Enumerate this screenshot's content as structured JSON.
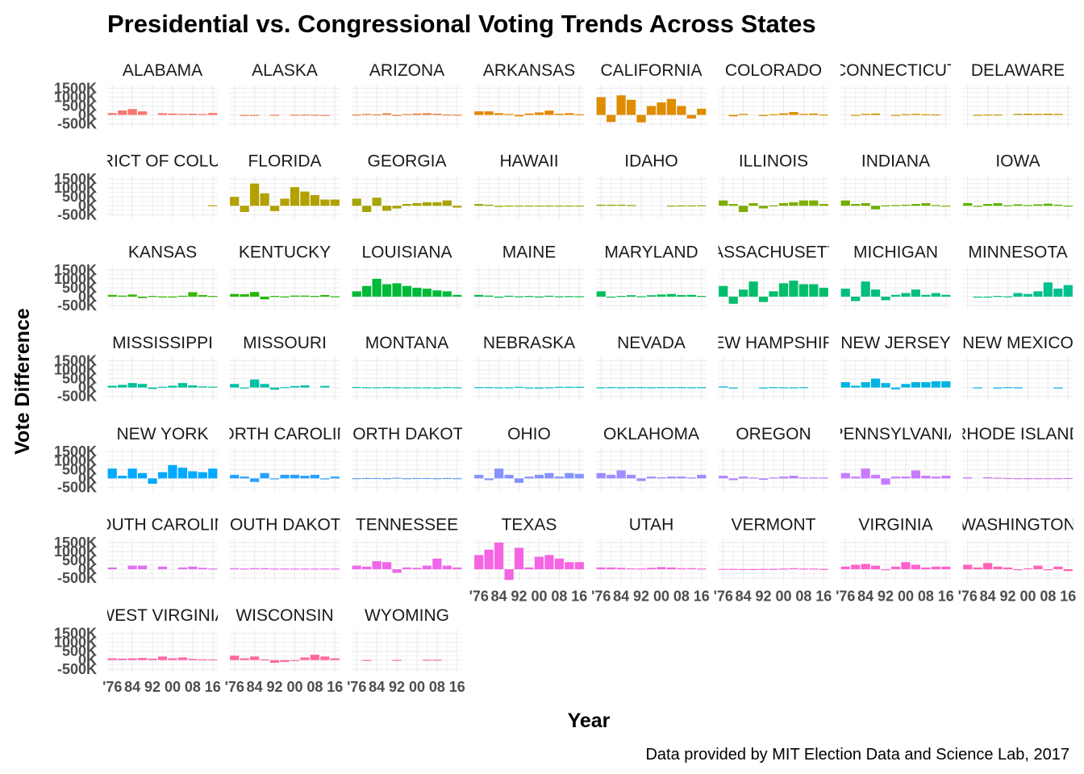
{
  "chart_data": {
    "type": "bar",
    "title": "Presidential vs. Congressional Voting Trends Across States",
    "xlabel": "Year",
    "ylabel": "Vote Difference",
    "caption": "Data provided by MIT Election Data and Science Lab, 2017",
    "y_ticks": [
      "1500K",
      "1000K",
      "500K",
      "0K",
      "-500K"
    ],
    "y_tick_values": [
      1500,
      1000,
      500,
      0,
      -500
    ],
    "x_ticks": [
      "'76",
      "84",
      "92",
      "00",
      "08",
      "16"
    ],
    "x_tick_values": [
      1976,
      1984,
      1992,
      2000,
      2008,
      2016
    ],
    "years": [
      1976,
      1980,
      1984,
      1988,
      1992,
      1996,
      2000,
      2004,
      2008,
      2012,
      2016
    ],
    "ylim": [
      -700,
      1700
    ],
    "value_unit": "thousands of votes",
    "grid": true,
    "legend": "none",
    "panels": [
      {
        "name": "ALABAMA",
        "color": "#F8766D",
        "values": [
          100,
          250,
          330,
          200,
          null,
          100,
          80,
          60,
          70,
          50,
          110
        ]
      },
      {
        "name": "ALASKA",
        "color": "#F37B59",
        "values": [
          null,
          -5,
          -10,
          null,
          10,
          null,
          10,
          20,
          10,
          -15,
          null
        ]
      },
      {
        "name": "ARIZONA",
        "color": "#ED8141",
        "values": [
          20,
          60,
          30,
          90,
          -60,
          50,
          80,
          100,
          70,
          20,
          10
        ]
      },
      {
        "name": "ARKANSAS",
        "color": "#E58700",
        "values": [
          200,
          200,
          100,
          50,
          -80,
          80,
          140,
          240,
          70,
          100,
          40
        ]
      },
      {
        "name": "CALIFORNIA",
        "color": "#DE8C00",
        "values": [
          1000,
          -400,
          1100,
          850,
          -420,
          500,
          700,
          900,
          500,
          -200,
          350
        ]
      },
      {
        "name": "COLORADO",
        "color": "#D89000",
        "values": [
          null,
          -80,
          60,
          null,
          -60,
          40,
          90,
          160,
          60,
          80,
          20
        ]
      },
      {
        "name": "CONNECTICUT",
        "color": "#CF9400",
        "values": [
          null,
          -40,
          60,
          80,
          null,
          -40,
          40,
          60,
          40,
          30,
          null
        ]
      },
      {
        "name": "DELAWARE",
        "color": "#C49A00",
        "values": [
          null,
          10,
          20,
          20,
          null,
          60,
          70,
          60,
          70,
          60,
          null
        ]
      },
      {
        "name": "DISTRICT OF COLUMBIA",
        "color": "#BB9D00",
        "values": [
          null,
          null,
          null,
          null,
          null,
          null,
          null,
          null,
          null,
          null,
          30
        ]
      },
      {
        "name": "FLORIDA",
        "color": "#B2A100",
        "values": [
          500,
          -350,
          1250,
          700,
          -300,
          400,
          1050,
          800,
          600,
          350,
          350
        ]
      },
      {
        "name": "GEORGIA",
        "color": "#A6A400",
        "values": [
          400,
          -350,
          450,
          -280,
          -150,
          100,
          150,
          200,
          200,
          300,
          -100
        ]
      },
      {
        "name": "HAWAII",
        "color": "#9AA800",
        "values": [
          100,
          60,
          -60,
          10,
          10,
          10,
          10,
          10,
          10,
          10,
          10
        ]
      },
      {
        "name": "IDAHO",
        "color": "#8EAB00",
        "values": [
          60,
          60,
          60,
          40,
          null,
          null,
          null,
          10,
          20,
          20,
          30
        ]
      },
      {
        "name": "ILLINOIS",
        "color": "#7FAE00",
        "values": [
          300,
          100,
          -350,
          150,
          -150,
          20,
          150,
          200,
          300,
          300,
          100
        ]
      },
      {
        "name": "INDIANA",
        "color": "#6FB000",
        "values": [
          300,
          100,
          150,
          -200,
          20,
          40,
          60,
          100,
          150,
          40,
          10
        ]
      },
      {
        "name": "IOWA",
        "color": "#5BB300",
        "values": [
          150,
          -50,
          100,
          150,
          30,
          80,
          40,
          80,
          120,
          60,
          10
        ]
      },
      {
        "name": "KANSAS",
        "color": "#39B600",
        "values": [
          100,
          60,
          120,
          -80,
          40,
          10,
          10,
          50,
          250,
          90,
          40
        ]
      },
      {
        "name": "KENTUCKY",
        "color": "#24B700",
        "values": [
          150,
          140,
          260,
          -150,
          40,
          10,
          60,
          60,
          40,
          90,
          20
        ]
      },
      {
        "name": "LOUISIANA",
        "color": "#00BA38",
        "values": [
          300,
          600,
          1000,
          700,
          750,
          600,
          500,
          450,
          350,
          300,
          100
        ]
      },
      {
        "name": "MAINE",
        "color": "#00BB4E",
        "values": [
          100,
          60,
          -60,
          50,
          20,
          40,
          10,
          50,
          20,
          30,
          20
        ]
      },
      {
        "name": "MARYLAND",
        "color": "#00BD5C",
        "values": [
          300,
          -50,
          40,
          80,
          20,
          80,
          120,
          150,
          90,
          100,
          40
        ]
      },
      {
        "name": "MASSACHUSETTS",
        "color": "#00BE6C",
        "values": [
          600,
          -400,
          400,
          850,
          -300,
          300,
          750,
          900,
          700,
          700,
          500
        ]
      },
      {
        "name": "MICHIGAN",
        "color": "#00BF7D",
        "values": [
          450,
          -250,
          850,
          400,
          -200,
          100,
          200,
          400,
          100,
          200,
          100
        ]
      },
      {
        "name": "MINNESOTA",
        "color": "#00C08D",
        "values": [
          null,
          -50,
          -30,
          40,
          20,
          200,
          150,
          300,
          800,
          450,
          650
        ]
      },
      {
        "name": "MISSISSIPPI",
        "color": "#00C19C",
        "values": [
          100,
          150,
          250,
          200,
          -80,
          40,
          100,
          250,
          120,
          60,
          50
        ]
      },
      {
        "name": "MISSOURI",
        "color": "#00C1AB",
        "values": [
          200,
          -50,
          450,
          200,
          -120,
          20,
          80,
          120,
          null,
          90,
          null
        ]
      },
      {
        "name": "MONTANA",
        "color": "#00BFB7",
        "values": [
          30,
          10,
          10,
          20,
          10,
          10,
          10,
          10,
          -20,
          20,
          10
        ]
      },
      {
        "name": "NEBRASKA",
        "color": "#00BDC2",
        "values": [
          20,
          20,
          10,
          10,
          40,
          -40,
          -60,
          10,
          40,
          40,
          40
        ]
      },
      {
        "name": "NEVADA",
        "color": "#00BBCE",
        "values": [
          10,
          20,
          10,
          20,
          20,
          10,
          20,
          20,
          20,
          10,
          20
        ]
      },
      {
        "name": "NEW HAMPSHIRE",
        "color": "#00B8DA",
        "values": [
          60,
          -30,
          null,
          null,
          -30,
          20,
          10,
          10,
          20,
          null,
          null
        ]
      },
      {
        "name": "NEW JERSEY",
        "color": "#00B4E4",
        "values": [
          300,
          100,
          300,
          500,
          250,
          -100,
          200,
          300,
          300,
          350,
          350
        ]
      },
      {
        "name": "NEW MEXICO",
        "color": "#00B0F6",
        "values": [
          null,
          10,
          null,
          -40,
          20,
          10,
          null,
          null,
          null,
          -40,
          null
        ]
      },
      {
        "name": "NEW YORK",
        "color": "#00A9FF",
        "values": [
          550,
          150,
          550,
          300,
          -300,
          350,
          750,
          600,
          400,
          350,
          550
        ]
      },
      {
        "name": "NORTH CAROLINA",
        "color": "#27A1FF",
        "values": [
          200,
          100,
          -200,
          300,
          -50,
          200,
          200,
          150,
          200,
          -50,
          100
        ]
      },
      {
        "name": "NORTH DAKOTA",
        "color": "#619CFF",
        "values": [
          10,
          20,
          20,
          10,
          40,
          10,
          20,
          20,
          10,
          20,
          10
        ]
      },
      {
        "name": "OHIO",
        "color": "#8494FF",
        "values": [
          200,
          -100,
          550,
          200,
          -250,
          100,
          200,
          300,
          100,
          300,
          250
        ]
      },
      {
        "name": "OKLAHOMA",
        "color": "#9F8CFF",
        "values": [
          300,
          200,
          450,
          200,
          -150,
          100,
          60,
          100,
          100,
          50,
          200
        ]
      },
      {
        "name": "OREGON",
        "color": "#B584FF",
        "values": [
          150,
          -100,
          100,
          50,
          -80,
          50,
          100,
          150,
          50,
          50,
          50
        ]
      },
      {
        "name": "PENNSYLVANIA",
        "color": "#C77CFF",
        "values": [
          300,
          100,
          550,
          200,
          -350,
          100,
          100,
          450,
          150,
          100,
          150
        ]
      },
      {
        "name": "RHODE ISLAND",
        "color": "#D675F8",
        "values": [
          60,
          null,
          60,
          40,
          20,
          10,
          10,
          10,
          10,
          10,
          20
        ]
      },
      {
        "name": "SOUTH CAROLINA",
        "color": "#E06EF1",
        "values": [
          100,
          null,
          200,
          200,
          null,
          150,
          null,
          100,
          150,
          80,
          40
        ]
      },
      {
        "name": "SOUTH DAKOTA",
        "color": "#E76BF3",
        "values": [
          60,
          40,
          60,
          60,
          40,
          40,
          40,
          40,
          40,
          40,
          40
        ]
      },
      {
        "name": "TENNESSEE",
        "color": "#EF67EB",
        "values": [
          200,
          150,
          450,
          400,
          -200,
          100,
          80,
          200,
          600,
          200,
          100
        ]
      },
      {
        "name": "TEXAS",
        "color": "#F564E3",
        "values": [
          800,
          1100,
          1500,
          -600,
          1200,
          100,
          700,
          800,
          600,
          400,
          400
        ]
      },
      {
        "name": "UTAH",
        "color": "#F962DD",
        "values": [
          100,
          100,
          80,
          50,
          40,
          80,
          120,
          100,
          60,
          60,
          40
        ]
      },
      {
        "name": "VERMONT",
        "color": "#FC61D5",
        "values": [
          20,
          20,
          10,
          10,
          20,
          20,
          40,
          60,
          40,
          40,
          20
        ]
      },
      {
        "name": "VIRGINIA",
        "color": "#FF61CC",
        "values": [
          150,
          250,
          300,
          200,
          -50,
          150,
          400,
          250,
          100,
          150,
          150
        ]
      },
      {
        "name": "WASHINGTON",
        "color": "#FF63B6",
        "values": [
          250,
          100,
          350,
          150,
          100,
          -50,
          50,
          200,
          -50,
          150,
          -100
        ]
      },
      {
        "name": "WEST VIRGINIA",
        "color": "#FF65AA",
        "values": [
          100,
          80,
          100,
          120,
          80,
          200,
          100,
          150,
          70,
          40,
          40
        ]
      },
      {
        "name": "WISCONSIN",
        "color": "#FF689E",
        "values": [
          250,
          100,
          200,
          40,
          -150,
          -100,
          -50,
          150,
          300,
          200,
          100
        ]
      },
      {
        "name": "WYOMING",
        "color": "#FF6C90",
        "values": [
          null,
          10,
          null,
          null,
          10,
          null,
          null,
          20,
          20,
          null,
          null
        ]
      }
    ]
  }
}
